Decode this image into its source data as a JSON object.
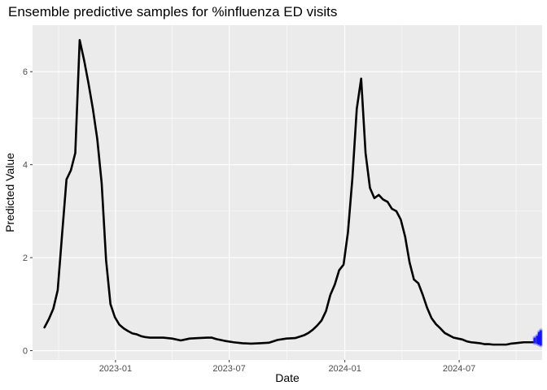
{
  "chart_data": {
    "type": "line",
    "title": "Ensemble predictive samples for %influenza ED visits",
    "xlabel": "Date",
    "ylabel": "Predicted Value",
    "xlim": [
      "2022-08-22",
      "2024-11-10"
    ],
    "ylim": [
      -0.2,
      7.0
    ],
    "x_ticks": [
      {
        "date": "2023-01-01",
        "label": "2023-01"
      },
      {
        "date": "2023-07-01",
        "label": "2023-07"
      },
      {
        "date": "2024-01-01",
        "label": "2024-01"
      },
      {
        "date": "2024-07-01",
        "label": "2024-07"
      }
    ],
    "y_ticks": [
      0,
      2,
      4,
      6
    ],
    "grid": true,
    "legend": "none",
    "series": [
      {
        "color": "#000000",
        "points": [
          [
            "2022-09-10",
            0.5
          ],
          [
            "2022-09-17",
            0.68
          ],
          [
            "2022-09-24",
            0.9
          ],
          [
            "2022-10-01",
            1.3
          ],
          [
            "2022-10-08",
            2.5
          ],
          [
            "2022-10-15",
            3.68
          ],
          [
            "2022-10-22",
            3.88
          ],
          [
            "2022-10-29",
            4.25
          ],
          [
            "2022-11-05",
            6.68
          ],
          [
            "2022-11-12",
            6.25
          ],
          [
            "2022-11-19",
            5.75
          ],
          [
            "2022-11-26",
            5.2
          ],
          [
            "2022-12-03",
            4.55
          ],
          [
            "2022-12-10",
            3.6
          ],
          [
            "2022-12-17",
            1.95
          ],
          [
            "2022-12-24",
            1.0
          ],
          [
            "2022-12-31",
            0.72
          ],
          [
            "2023-01-07",
            0.56
          ],
          [
            "2023-01-14",
            0.48
          ],
          [
            "2023-01-21",
            0.42
          ],
          [
            "2023-01-28",
            0.37
          ],
          [
            "2023-02-04",
            0.35
          ],
          [
            "2023-02-11",
            0.31
          ],
          [
            "2023-02-18",
            0.29
          ],
          [
            "2023-02-25",
            0.28
          ],
          [
            "2023-03-04",
            0.28
          ],
          [
            "2023-03-18",
            0.28
          ],
          [
            "2023-04-01",
            0.26
          ],
          [
            "2023-04-15",
            0.22
          ],
          [
            "2023-04-29",
            0.26
          ],
          [
            "2023-05-13",
            0.27
          ],
          [
            "2023-05-27",
            0.28
          ],
          [
            "2023-06-03",
            0.28
          ],
          [
            "2023-06-10",
            0.25
          ],
          [
            "2023-06-24",
            0.21
          ],
          [
            "2023-07-08",
            0.18
          ],
          [
            "2023-07-22",
            0.16
          ],
          [
            "2023-08-05",
            0.15
          ],
          [
            "2023-08-19",
            0.16
          ],
          [
            "2023-09-02",
            0.17
          ],
          [
            "2023-09-16",
            0.23
          ],
          [
            "2023-09-30",
            0.26
          ],
          [
            "2023-10-14",
            0.27
          ],
          [
            "2023-10-28",
            0.33
          ],
          [
            "2023-11-04",
            0.38
          ],
          [
            "2023-11-11",
            0.45
          ],
          [
            "2023-11-18",
            0.54
          ],
          [
            "2023-11-25",
            0.65
          ],
          [
            "2023-12-02",
            0.85
          ],
          [
            "2023-12-09",
            1.2
          ],
          [
            "2023-12-16",
            1.42
          ],
          [
            "2023-12-23",
            1.73
          ],
          [
            "2023-12-30",
            1.85
          ],
          [
            "2024-01-06",
            2.55
          ],
          [
            "2024-01-13",
            3.7
          ],
          [
            "2024-01-20",
            5.2
          ],
          [
            "2024-01-27",
            5.85
          ],
          [
            "2024-02-03",
            4.25
          ],
          [
            "2024-02-10",
            3.5
          ],
          [
            "2024-02-17",
            3.28
          ],
          [
            "2024-02-24",
            3.35
          ],
          [
            "2024-03-02",
            3.25
          ],
          [
            "2024-03-09",
            3.2
          ],
          [
            "2024-03-16",
            3.05
          ],
          [
            "2024-03-23",
            3.0
          ],
          [
            "2024-03-30",
            2.82
          ],
          [
            "2024-04-06",
            2.45
          ],
          [
            "2024-04-13",
            1.9
          ],
          [
            "2024-04-20",
            1.53
          ],
          [
            "2024-04-27",
            1.45
          ],
          [
            "2024-05-04",
            1.2
          ],
          [
            "2024-05-11",
            0.92
          ],
          [
            "2024-05-18",
            0.7
          ],
          [
            "2024-05-25",
            0.57
          ],
          [
            "2024-06-01",
            0.48
          ],
          [
            "2024-06-08",
            0.38
          ],
          [
            "2024-06-15",
            0.33
          ],
          [
            "2024-06-22",
            0.28
          ],
          [
            "2024-06-29",
            0.26
          ],
          [
            "2024-07-06",
            0.24
          ],
          [
            "2024-07-13",
            0.2
          ],
          [
            "2024-07-20",
            0.18
          ],
          [
            "2024-07-27",
            0.17
          ],
          [
            "2024-08-03",
            0.16
          ],
          [
            "2024-08-10",
            0.14
          ],
          [
            "2024-08-17",
            0.14
          ],
          [
            "2024-08-24",
            0.13
          ],
          [
            "2024-08-31",
            0.13
          ],
          [
            "2024-09-07",
            0.13
          ],
          [
            "2024-09-14",
            0.13
          ],
          [
            "2024-09-21",
            0.15
          ],
          [
            "2024-09-28",
            0.16
          ],
          [
            "2024-10-05",
            0.17
          ],
          [
            "2024-10-12",
            0.18
          ],
          [
            "2024-10-19",
            0.18
          ],
          [
            "2024-10-26",
            0.18
          ]
        ]
      }
    ],
    "forecast_samples": {
      "color": "#0000ff",
      "dates": [
        "2024-10-29",
        "2024-11-02",
        "2024-11-05",
        "2024-11-08"
      ],
      "ranges": [
        [
          0.18,
          0.26
        ],
        [
          0.17,
          0.3
        ],
        [
          0.15,
          0.38
        ],
        [
          0.13,
          0.42
        ]
      ]
    }
  }
}
